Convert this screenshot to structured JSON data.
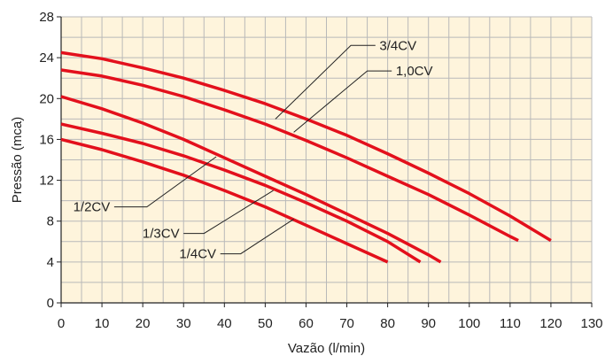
{
  "chart_data": {
    "type": "line",
    "title": "",
    "xlabel": "Vazão (l/min)",
    "ylabel": "Pressão (mca)",
    "xlim": [
      0,
      130
    ],
    "ylim": [
      0,
      28
    ],
    "x_ticks": [
      0,
      10,
      20,
      30,
      40,
      50,
      60,
      70,
      80,
      90,
      100,
      110,
      120,
      130
    ],
    "y_ticks": [
      0,
      4,
      8,
      12,
      16,
      20,
      24,
      28
    ],
    "grid": true,
    "grid_background": "#fef4dc",
    "grid_line_color": "#b9b9b9",
    "curve_color": "#e3101c",
    "series": [
      {
        "name": "3/4CV",
        "x": [
          0,
          10,
          20,
          30,
          40,
          50,
          60,
          70,
          80,
          90,
          100,
          110,
          112
        ],
        "y": [
          22.8,
          22.2,
          21.3,
          20.2,
          18.9,
          17.5,
          15.9,
          14.2,
          12.4,
          10.6,
          8.6,
          6.5,
          6.1
        ]
      },
      {
        "name": "1,0CV",
        "x": [
          0,
          10,
          20,
          30,
          40,
          50,
          60,
          70,
          80,
          90,
          100,
          110,
          120
        ],
        "y": [
          24.5,
          23.9,
          23.0,
          22.0,
          20.8,
          19.5,
          18.0,
          16.4,
          14.6,
          12.7,
          10.7,
          8.5,
          6.1
        ]
      },
      {
        "name": "1/2CV",
        "x": [
          0,
          10,
          20,
          30,
          40,
          50,
          60,
          70,
          80,
          90,
          93
        ],
        "y": [
          20.2,
          19.0,
          17.6,
          16.0,
          14.2,
          12.4,
          10.6,
          8.7,
          6.8,
          4.7,
          4.0
        ]
      },
      {
        "name": "1/3CV",
        "x": [
          0,
          10,
          20,
          30,
          40,
          50,
          60,
          70,
          80,
          88
        ],
        "y": [
          17.5,
          16.6,
          15.6,
          14.4,
          13.0,
          11.5,
          9.8,
          8.0,
          6.0,
          4.0
        ]
      },
      {
        "name": "1/4CV",
        "x": [
          0,
          10,
          20,
          30,
          40,
          50,
          60,
          70,
          80
        ],
        "y": [
          16.0,
          15.0,
          13.8,
          12.5,
          11.0,
          9.4,
          7.6,
          5.8,
          4.0
        ]
      }
    ],
    "annotations": [
      {
        "series": "3/4CV",
        "text": "3/4CV"
      },
      {
        "series": "1,0CV",
        "text": "1,0CV"
      },
      {
        "series": "1/2CV",
        "text": "1/2CV"
      },
      {
        "series": "1/3CV",
        "text": "1/3CV"
      },
      {
        "series": "1/4CV",
        "text": "1/4CV"
      }
    ]
  }
}
